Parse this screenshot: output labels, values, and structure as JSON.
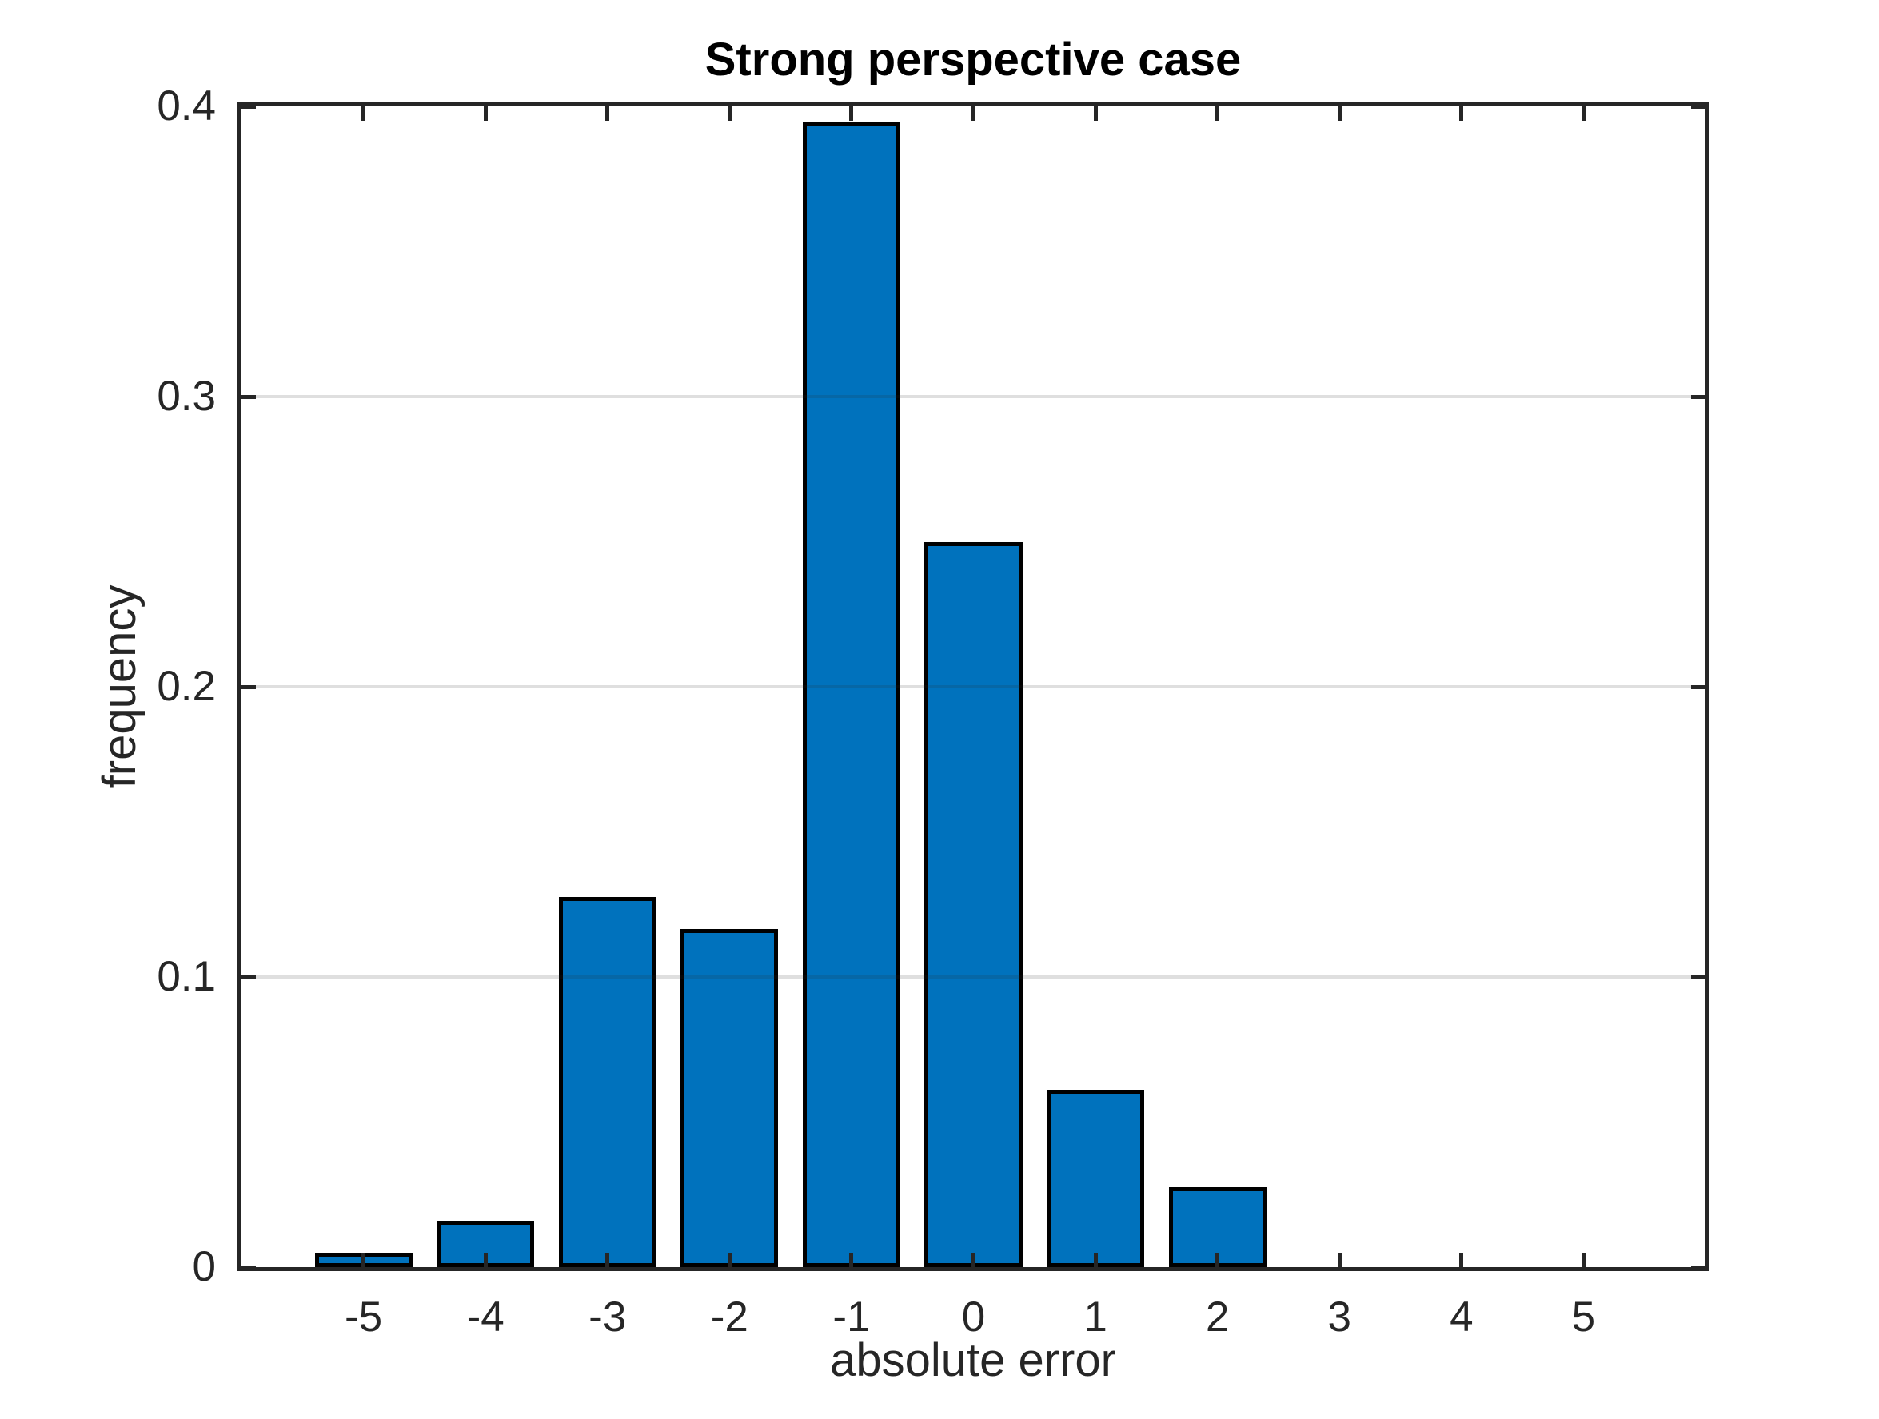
{
  "figure": {
    "background": "#ffffff",
    "title": "Strong perspective case"
  },
  "chart_data": {
    "type": "bar",
    "title": "Strong perspective case",
    "xlabel": "absolute error",
    "ylabel": "frequency",
    "categories": [
      -5,
      -4,
      -3,
      -2,
      -1,
      0,
      1,
      2
    ],
    "values": [
      0.005,
      0.016,
      0.1275,
      0.1165,
      0.3945,
      0.25,
      0.061,
      0.0275
    ],
    "xlim": [
      -6,
      6
    ],
    "ylim": [
      0,
      0.4
    ],
    "xticks": [
      -5,
      -4,
      -3,
      -2,
      -1,
      0,
      1,
      2,
      3,
      4,
      5
    ],
    "x_tick_labels": [
      "-5",
      "-4",
      "-3",
      "-2",
      "-1",
      "0",
      "1",
      "2",
      "3",
      "4",
      "5"
    ],
    "yticks": [
      0,
      0.1,
      0.2,
      0.3,
      0.4
    ],
    "y_tick_labels": [
      "0",
      "0.1",
      "0.2",
      "0.3",
      "0.4"
    ],
    "grid": "horizontal gridlines at 0.1, 0.2, 0.3, drawn over bars",
    "tick_direction": "in, mirrored on all four box sides, drawn over bars",
    "bar_width_units": 0.8,
    "legend": "none",
    "colors": {
      "bar_fill": "#0072bd",
      "bar_edge": "#000000",
      "axis": "#262626",
      "grid": "#dedede",
      "title_text": "#000000",
      "background": "#ffffff"
    }
  }
}
